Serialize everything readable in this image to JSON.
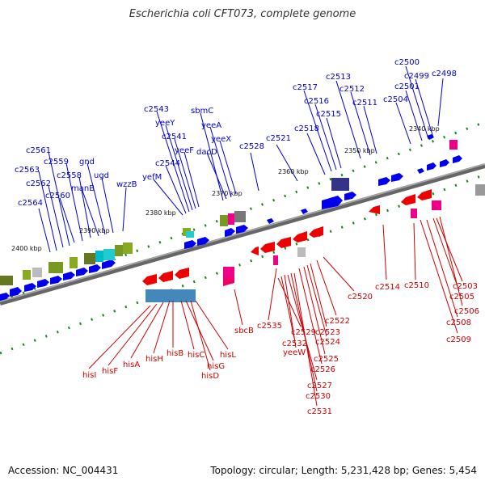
{
  "title": "Escherichia coli CFT073, complete genome",
  "footer": {
    "accession": "Accession: NC_004431",
    "topology": "Topology: circular; Length: 5,231,428 bp; Genes: 5,454"
  },
  "colors": {
    "forward": "#0000ee",
    "reverse": "#ee0000",
    "label_top": "#0000cc",
    "label_bottom": "#cc0000",
    "backbone": "#888888",
    "tick": "#118811"
  },
  "ticks": [
    "2400 kbp",
    "2390 kbp",
    "2380 kbp",
    "2370 kbp",
    "2360 kbp",
    "2350 kbp",
    "2340 kbp"
  ],
  "top_genes": [
    "c2564",
    "c2563",
    "c2562",
    "c2561",
    "c2560",
    "c2559",
    "c2558",
    "manB",
    "gnd",
    "ugd",
    "wzzB",
    "yefM",
    "c2544",
    "c2543",
    "yeeY",
    "c2541",
    "yeeF",
    "sbmC",
    "dacD",
    "yeeA",
    "yeeX",
    "c2528",
    "c2521",
    "c2518",
    "c2517",
    "c2516",
    "c2515",
    "c2513",
    "c2512",
    "c2511",
    "c2504",
    "c2501",
    "c2500",
    "c2499",
    "c2498"
  ],
  "bottom_genes": [
    "hisI",
    "hisF",
    "hisA",
    "hisH",
    "hisB",
    "hisC",
    "hisG",
    "hisD",
    "hisL",
    "sbcB",
    "c2535",
    "c2529",
    "c2532",
    "yeeW",
    "c2527",
    "c2530",
    "c2531",
    "c2526",
    "c2525",
    "c2524",
    "c2523",
    "c2522",
    "c2520",
    "c2514",
    "c2510",
    "c2503",
    "c2505",
    "c2506",
    "c2508",
    "c2509"
  ]
}
